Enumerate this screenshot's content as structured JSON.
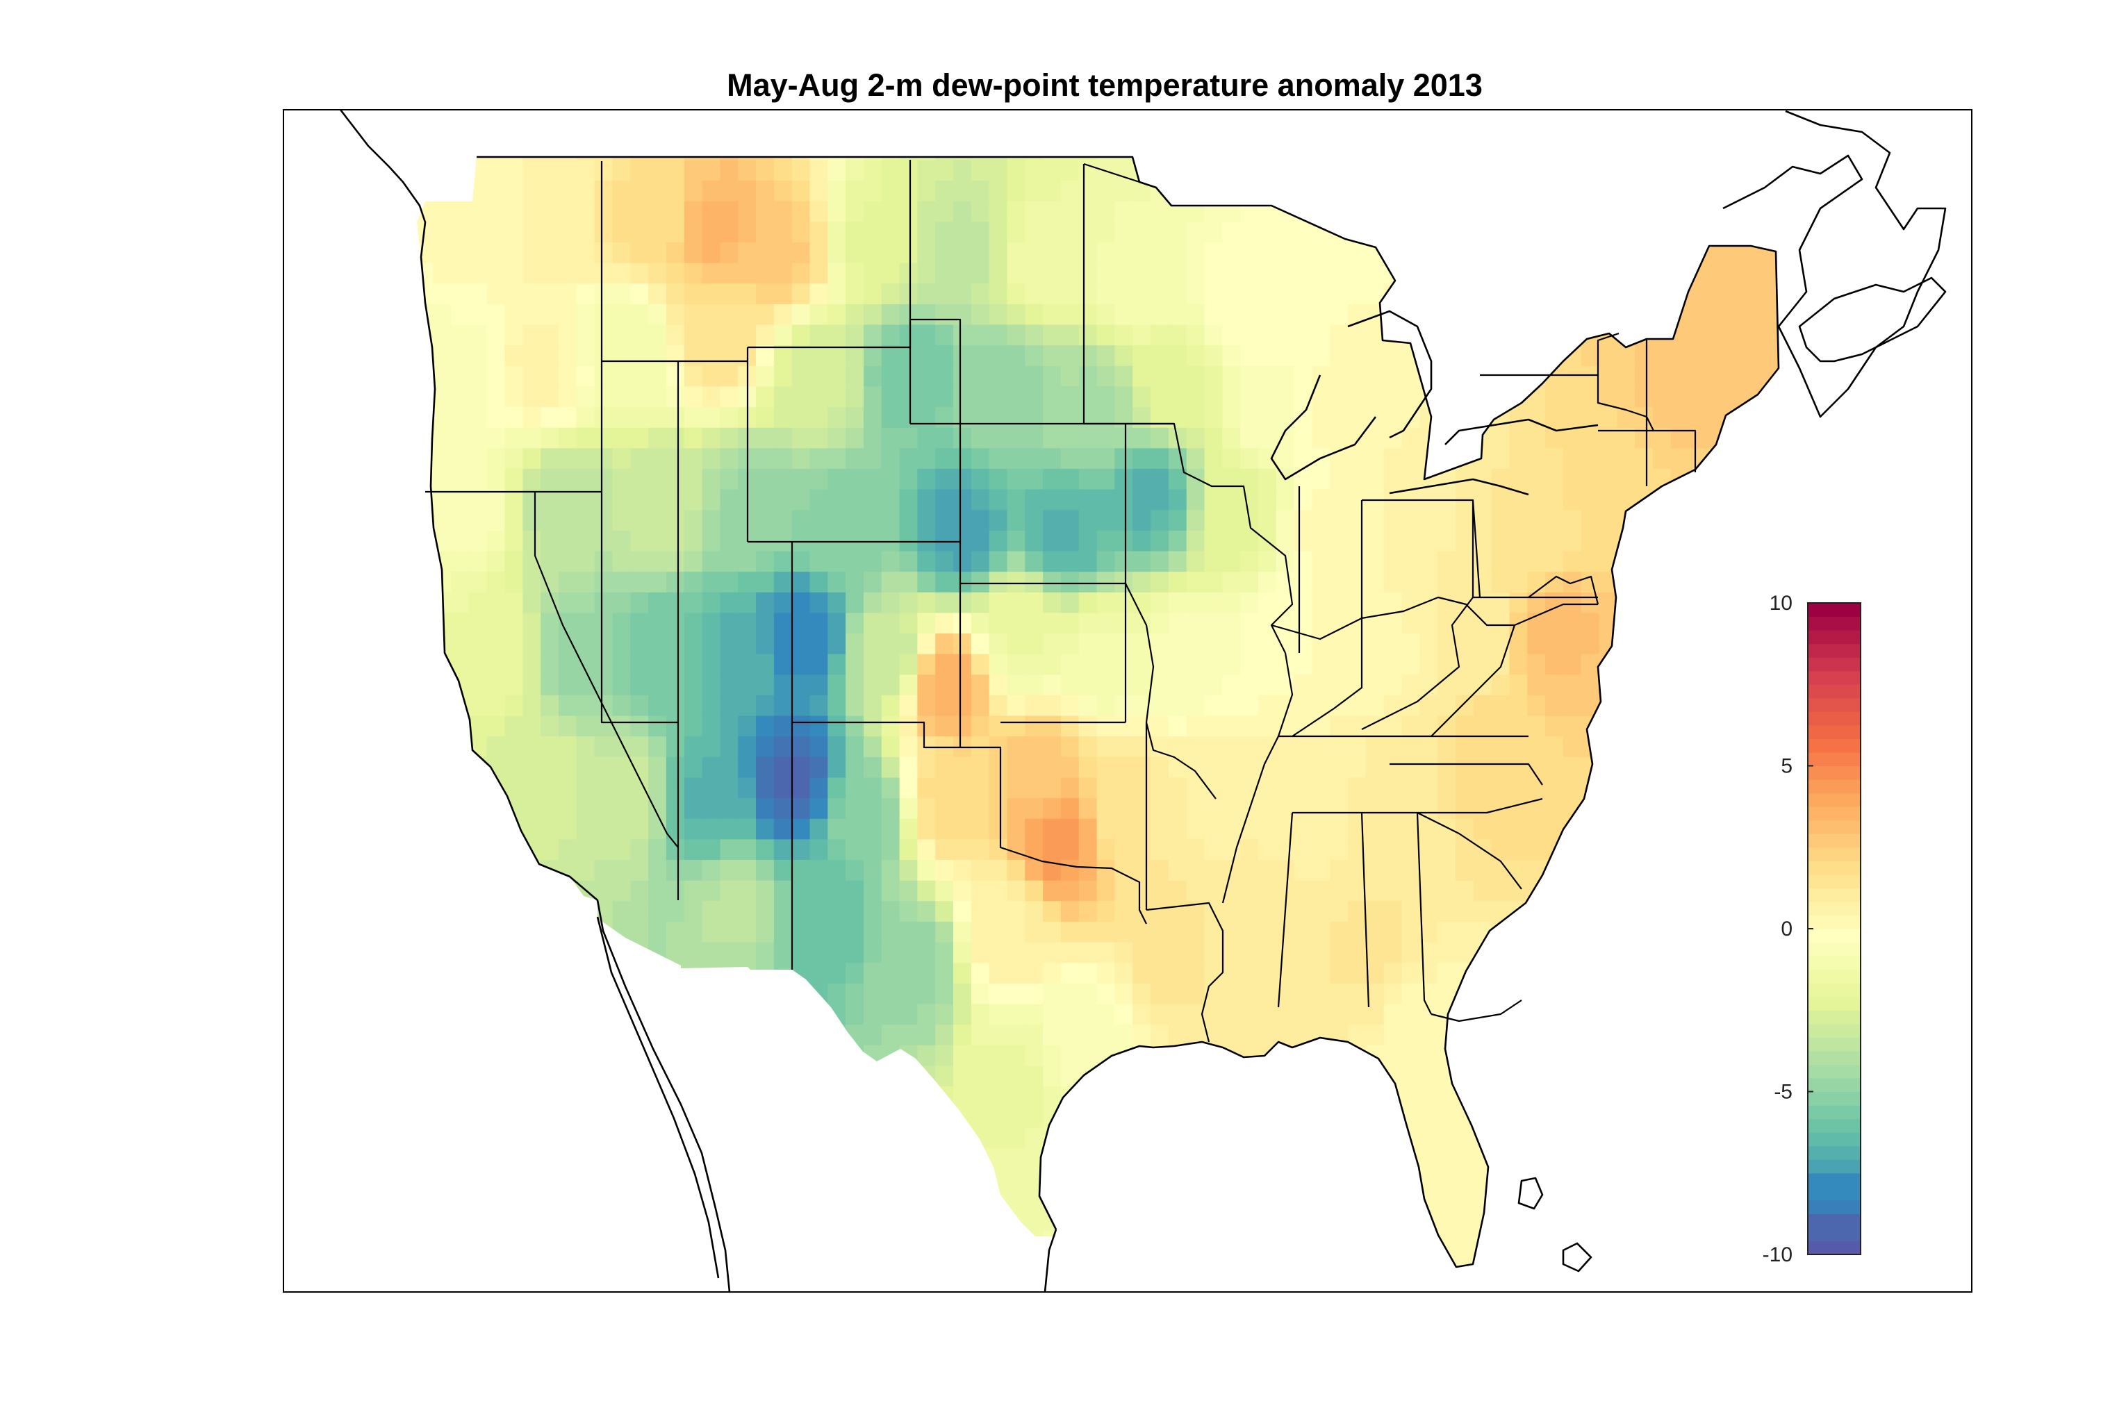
{
  "title": "May-Aug 2-m dew-point temperature anomaly 2013",
  "colorbar": {
    "min": -10,
    "max": 10,
    "ticks": [
      {
        "value": 10,
        "label": "10"
      },
      {
        "value": 5,
        "label": "5"
      },
      {
        "value": 0,
        "label": "0"
      },
      {
        "value": -5,
        "label": "-5"
      },
      {
        "value": -10,
        "label": "-10"
      }
    ],
    "colormap": [
      "#5e4fa2",
      "#3288bd",
      "#66c2a5",
      "#abdda4",
      "#e6f598",
      "#ffffbf",
      "#fee08b",
      "#fdae61",
      "#f46d43",
      "#d53e4f",
      "#9e0142"
    ]
  },
  "anomaly_field": [
    {
      "lon": -121.5,
      "lat": 48.5,
      "value": 0.3
    },
    {
      "lon": -118.0,
      "lat": 48.5,
      "value": 0.8
    },
    {
      "lon": -114.0,
      "lat": 48.5,
      "value": 2.0
    },
    {
      "lon": -111.0,
      "lat": 48.3,
      "value": 3.6
    },
    {
      "lon": -108.5,
      "lat": 47.8,
      "value": 2.8
    },
    {
      "lon": -104.5,
      "lat": 48.0,
      "value": -2.0
    },
    {
      "lon": -101.0,
      "lat": 47.8,
      "value": -3.2
    },
    {
      "lon": -97.5,
      "lat": 47.5,
      "value": -1.2
    },
    {
      "lon": -93.5,
      "lat": 47.0,
      "value": -0.8
    },
    {
      "lon": -89.0,
      "lat": 46.5,
      "value": 0.2
    },
    {
      "lon": -122.0,
      "lat": 45.0,
      "value": -0.3
    },
    {
      "lon": -118.5,
      "lat": 45.0,
      "value": 0.7
    },
    {
      "lon": -115.0,
      "lat": 45.5,
      "value": -1.0
    },
    {
      "lon": -111.0,
      "lat": 45.8,
      "value": 1.8
    },
    {
      "lon": -107.0,
      "lat": 44.8,
      "value": -2.5
    },
    {
      "lon": -103.0,
      "lat": 44.8,
      "value": -5.5
    },
    {
      "lon": -99.0,
      "lat": 44.5,
      "value": -4.5
    },
    {
      "lon": -95.5,
      "lat": 44.0,
      "value": -4.0
    },
    {
      "lon": -92.0,
      "lat": 44.5,
      "value": -2.0
    },
    {
      "lon": -88.0,
      "lat": 44.0,
      "value": -0.3
    },
    {
      "lon": -84.5,
      "lat": 44.0,
      "value": 0.5
    },
    {
      "lon": -121.5,
      "lat": 41.5,
      "value": -0.5
    },
    {
      "lon": -117.5,
      "lat": 41.5,
      "value": -3.5
    },
    {
      "lon": -113.5,
      "lat": 41.5,
      "value": -3.0
    },
    {
      "lon": -109.5,
      "lat": 41.5,
      "value": -4.5
    },
    {
      "lon": -106.0,
      "lat": 41.0,
      "value": -5.0
    },
    {
      "lon": -101.0,
      "lat": 41.0,
      "value": -7.0
    },
    {
      "lon": -96.5,
      "lat": 41.0,
      "value": -6.5
    },
    {
      "lon": -93.0,
      "lat": 41.8,
      "value": -6.5
    },
    {
      "lon": -89.5,
      "lat": 41.5,
      "value": -2.0
    },
    {
      "lon": -85.5,
      "lat": 41.0,
      "value": 0.3
    },
    {
      "lon": -81.5,
      "lat": 41.5,
      "value": 1.0
    },
    {
      "lon": -77.0,
      "lat": 41.0,
      "value": 1.6
    },
    {
      "lon": -73.5,
      "lat": 42.0,
      "value": 2.2
    },
    {
      "lon": -70.5,
      "lat": 44.5,
      "value": 2.8
    },
    {
      "lon": -69.0,
      "lat": 46.5,
      "value": 3.0
    },
    {
      "lon": -120.5,
      "lat": 38.0,
      "value": -1.5
    },
    {
      "lon": -117.0,
      "lat": 38.0,
      "value": -4.5
    },
    {
      "lon": -113.5,
      "lat": 38.0,
      "value": -5.5
    },
    {
      "lon": -110.5,
      "lat": 38.0,
      "value": -6.5
    },
    {
      "lon": -107.5,
      "lat": 38.5,
      "value": -8.0
    },
    {
      "lon": -104.0,
      "lat": 38.0,
      "value": -3.0
    },
    {
      "lon": -101.5,
      "lat": 37.2,
      "value": 3.8
    },
    {
      "lon": -98.5,
      "lat": 38.5,
      "value": -1.5
    },
    {
      "lon": -95.0,
      "lat": 38.0,
      "value": -1.0
    },
    {
      "lon": -91.5,
      "lat": 38.0,
      "value": -0.5
    },
    {
      "lon": -87.5,
      "lat": 38.0,
      "value": 0.2
    },
    {
      "lon": -83.5,
      "lat": 38.0,
      "value": 0.5
    },
    {
      "lon": -79.5,
      "lat": 38.5,
      "value": 1.2
    },
    {
      "lon": -76.0,
      "lat": 38.5,
      "value": 3.2
    },
    {
      "lon": -118.5,
      "lat": 35.0,
      "value": -2.5
    },
    {
      "lon": -115.0,
      "lat": 34.5,
      "value": -3.0
    },
    {
      "lon": -111.5,
      "lat": 34.5,
      "value": -6.5
    },
    {
      "lon": -108.0,
      "lat": 35.0,
      "value": -9.0
    },
    {
      "lon": -105.0,
      "lat": 34.0,
      "value": -5.0
    },
    {
      "lon": -101.5,
      "lat": 34.5,
      "value": 2.0
    },
    {
      "lon": -97.5,
      "lat": 35.0,
      "value": 3.0
    },
    {
      "lon": -94.0,
      "lat": 34.5,
      "value": 1.5
    },
    {
      "lon": -90.5,
      "lat": 34.5,
      "value": 1.0
    },
    {
      "lon": -86.5,
      "lat": 34.5,
      "value": 0.8
    },
    {
      "lon": -82.5,
      "lat": 34.5,
      "value": 1.3
    },
    {
      "lon": -78.5,
      "lat": 35.5,
      "value": 2.2
    },
    {
      "lon": -110.5,
      "lat": 31.8,
      "value": -3.5
    },
    {
      "lon": -106.5,
      "lat": 31.5,
      "value": -6.0
    },
    {
      "lon": -103.0,
      "lat": 30.5,
      "value": -4.5
    },
    {
      "lon": -99.0,
      "lat": 31.5,
      "value": 1.0
    },
    {
      "lon": -97.0,
      "lat": 33.5,
      "value": 4.5
    },
    {
      "lon": -96.0,
      "lat": 28.5,
      "value": -0.5
    },
    {
      "lon": -92.0,
      "lat": 31.0,
      "value": 1.6
    },
    {
      "lon": -88.5,
      "lat": 31.5,
      "value": 1.2
    },
    {
      "lon": -84.0,
      "lat": 31.0,
      "value": 1.5
    },
    {
      "lon": -81.5,
      "lat": 28.5,
      "value": 0.4
    },
    {
      "lon": -98.5,
      "lat": 27.5,
      "value": -1.5
    },
    {
      "lon": -81.0,
      "lat": 26.0,
      "value": 0.3
    }
  ]
}
